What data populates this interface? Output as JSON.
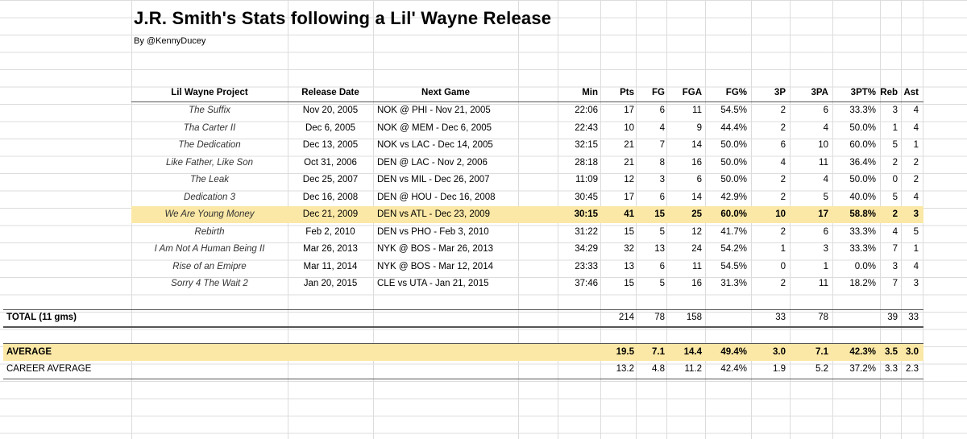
{
  "title": "J.R. Smith's Stats following a Lil' Wayne Release",
  "byline": "By @KennyDucey",
  "headers": [
    "Lil Wayne Project",
    "Release Date",
    "Next Game",
    "Min",
    "Pts",
    "FG",
    "FGA",
    "FG%",
    "3P",
    "3PA",
    "3PT%",
    "Reb",
    "Ast"
  ],
  "rows": [
    {
      "project": "The Suffix",
      "date": "Nov 20, 2005",
      "game": "NOK @ PHI - Nov 21, 2005",
      "min": "22:06",
      "pts": "17",
      "fg": "6",
      "fga": "11",
      "fgp": "54.5%",
      "p3": "2",
      "pa3": "6",
      "p3p": "33.3%",
      "reb": "3",
      "ast": "4"
    },
    {
      "project": "Tha Carter II",
      "date": "Dec 6, 2005",
      "game": "NOK @ MEM - Dec 6, 2005",
      "min": "22:43",
      "pts": "10",
      "fg": "4",
      "fga": "9",
      "fgp": "44.4%",
      "p3": "2",
      "pa3": "4",
      "p3p": "50.0%",
      "reb": "1",
      "ast": "4"
    },
    {
      "project": "The Dedication",
      "date": "Dec 13, 2005",
      "game": "NOK vs LAC - Dec 14, 2005",
      "min": "32:15",
      "pts": "21",
      "fg": "7",
      "fga": "14",
      "fgp": "50.0%",
      "p3": "6",
      "pa3": "10",
      "p3p": "60.0%",
      "reb": "5",
      "ast": "1"
    },
    {
      "project": "Like Father, Like Son",
      "date": "Oct 31, 2006",
      "game": "DEN @ LAC - Nov 2, 2006",
      "min": "28:18",
      "pts": "21",
      "fg": "8",
      "fga": "16",
      "fgp": "50.0%",
      "p3": "4",
      "pa3": "11",
      "p3p": "36.4%",
      "reb": "2",
      "ast": "2"
    },
    {
      "project": "The Leak",
      "date": "Dec 25, 2007",
      "game": "DEN vs MIL - Dec 26, 2007",
      "min": "11:09",
      "pts": "12",
      "fg": "3",
      "fga": "6",
      "fgp": "50.0%",
      "p3": "2",
      "pa3": "4",
      "p3p": "50.0%",
      "reb": "0",
      "ast": "2"
    },
    {
      "project": "Dedication 3",
      "date": "Dec 16, 2008",
      "game": "DEN @ HOU - Dec 16, 2008",
      "min": "30:45",
      "pts": "17",
      "fg": "6",
      "fga": "14",
      "fgp": "42.9%",
      "p3": "2",
      "pa3": "5",
      "p3p": "40.0%",
      "reb": "5",
      "ast": "4"
    },
    {
      "project": "We Are Young Money",
      "date": "Dec 21, 2009",
      "game": "DEN vs ATL - Dec 23, 2009",
      "min": "30:15",
      "pts": "41",
      "fg": "15",
      "fga": "25",
      "fgp": "60.0%",
      "p3": "10",
      "pa3": "17",
      "p3p": "58.8%",
      "reb": "2",
      "ast": "3"
    },
    {
      "project": "Rebirth",
      "date": "Feb 2, 2010",
      "game": "DEN vs PHO - Feb 3, 2010",
      "min": "31:22",
      "pts": "15",
      "fg": "5",
      "fga": "12",
      "fgp": "41.7%",
      "p3": "2",
      "pa3": "6",
      "p3p": "33.3%",
      "reb": "4",
      "ast": "5"
    },
    {
      "project": "I Am Not A Human Being II",
      "date": "Mar 26, 2013",
      "game": "NYK @ BOS - Mar 26, 2013",
      "min": "34:29",
      "pts": "32",
      "fg": "13",
      "fga": "24",
      "fgp": "54.2%",
      "p3": "1",
      "pa3": "3",
      "p3p": "33.3%",
      "reb": "7",
      "ast": "1"
    },
    {
      "project": "Rise of an Emipre",
      "date": "Mar 11, 2014",
      "game": "NYK @ BOS - Mar 12, 2014",
      "min": "23:33",
      "pts": "13",
      "fg": "6",
      "fga": "11",
      "fgp": "54.5%",
      "p3": "0",
      "pa3": "1",
      "p3p": "0.0%",
      "reb": "3",
      "ast": "4"
    },
    {
      "project": "Sorry 4 The Wait 2",
      "date": "Jan 20, 2015",
      "game": "CLE vs UTA - Jan 21, 2015",
      "min": "37:46",
      "pts": "15",
      "fg": "5",
      "fga": "16",
      "fgp": "31.3%",
      "p3": "2",
      "pa3": "11",
      "p3p": "18.2%",
      "reb": "7",
      "ast": "3"
    }
  ],
  "total": {
    "label": "TOTAL (11 gms)",
    "pts": "214",
    "fg": "78",
    "fga": "158",
    "p3": "33",
    "pa3": "78",
    "reb": "39",
    "ast": "33"
  },
  "average": {
    "label": "AVERAGE",
    "pts": "19.5",
    "fg": "7.1",
    "fga": "14.4",
    "fgp": "49.4%",
    "p3": "3.0",
    "pa3": "7.1",
    "p3p": "42.3%",
    "reb": "3.5",
    "ast": "3.0"
  },
  "career": {
    "label": "CAREER AVERAGE",
    "pts": "13.2",
    "fg": "4.8",
    "fga": "11.2",
    "fgp": "42.4%",
    "p3": "1.9",
    "pa3": "5.2",
    "p3p": "37.2%",
    "reb": "3.3",
    "ast": "2.3"
  },
  "colors": {
    "highlight": "#fbe8a6",
    "grid": "#dcdcdc"
  }
}
